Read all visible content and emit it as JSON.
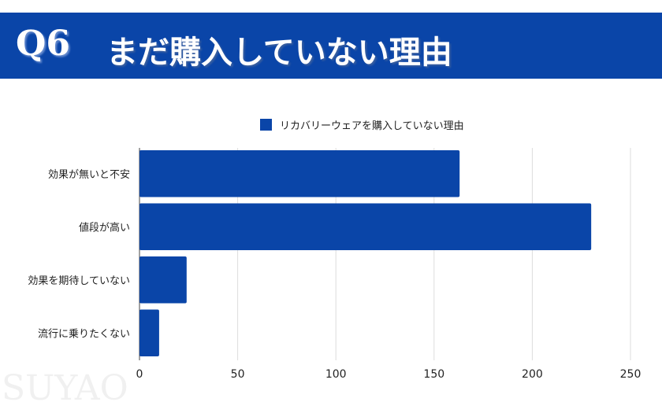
{
  "header": {
    "question": "Q6",
    "title": "まだ購入していない理由"
  },
  "watermark": "SUYAO",
  "chart_data": {
    "type": "bar",
    "orientation": "horizontal",
    "title": "",
    "categories": [
      "効果が無いと不安",
      "値段が高い",
      "効果を期待していない",
      "流行に乗りたくない"
    ],
    "series": [
      {
        "name": "リカバリーウェアを購入していない理由",
        "values": [
          163,
          230,
          24,
          10
        ]
      }
    ],
    "xlim": [
      0,
      250
    ],
    "xticks": [
      0,
      50,
      100,
      150,
      200,
      250
    ],
    "grid": true,
    "legend": "top",
    "colors": {
      "bar": "#0a45a8",
      "grid": "#dddddd"
    }
  }
}
